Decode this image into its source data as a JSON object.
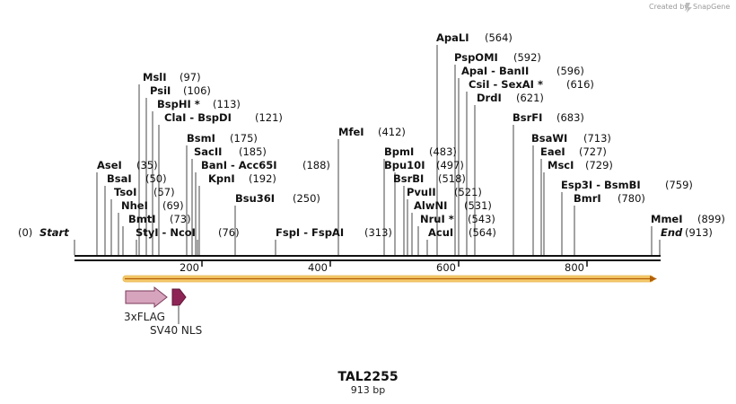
{
  "header": {
    "credit": "Created by",
    "brand": "SnapGene"
  },
  "map": {
    "name": "TAL2255",
    "length_label": "913 bp",
    "length": 913,
    "start": {
      "label": "Start",
      "pos": "(0)"
    },
    "end": {
      "label": "End",
      "pos": "(913)"
    },
    "ticks": [
      200,
      400,
      600,
      800
    ],
    "tick_labels": [
      "200",
      "400",
      "600",
      "800"
    ]
  },
  "sites": [
    {
      "name": "ApaLI",
      "pos": "(564)",
      "bp": 564
    },
    {
      "name": "PspOMI",
      "pos": "(592)",
      "bp": 592
    },
    {
      "name": "ApaI  - BanII",
      "pos": "(596)",
      "bp": 596
    },
    {
      "name": "CsiI  - SexAI *",
      "pos": "(616)",
      "bp": 616
    },
    {
      "name": "DrdI",
      "pos": "(621)",
      "bp": 621
    },
    {
      "name": "BsrFI",
      "pos": "(683)",
      "bp": 683
    },
    {
      "name": "BsaWI",
      "pos": "(713)",
      "bp": 713
    },
    {
      "name": "EaeI",
      "pos": "(727)",
      "bp": 727
    },
    {
      "name": "MscI",
      "pos": "(729)",
      "bp": 729
    },
    {
      "name": "Esp3I  - BsmBI",
      "pos": "(759)",
      "bp": 759
    },
    {
      "name": "BmrI",
      "pos": "(780)",
      "bp": 780
    },
    {
      "name": "MmeI",
      "pos": "(899)",
      "bp": 899
    },
    {
      "name": "MslI",
      "pos": "(97)",
      "bp": 97
    },
    {
      "name": "PsiI",
      "pos": "(106)",
      "bp": 106
    },
    {
      "name": "BspHI *",
      "pos": "(113)",
      "bp": 113
    },
    {
      "name": "ClaI  - BspDI",
      "pos": "(121)",
      "bp": 121
    },
    {
      "name": "BsmI",
      "pos": "(175)",
      "bp": 175
    },
    {
      "name": "SacII",
      "pos": "(185)",
      "bp": 185
    },
    {
      "name": "BanI  - Acc65I",
      "pos": "(188)",
      "bp": 188
    },
    {
      "name": "KpnI",
      "pos": "(192)",
      "bp": 192
    },
    {
      "name": "Bsu36I",
      "pos": "(250)",
      "bp": 250
    },
    {
      "name": "AseI",
      "pos": "(35)",
      "bp": 35
    },
    {
      "name": "BsaI",
      "pos": "(50)",
      "bp": 50
    },
    {
      "name": "TsoI",
      "pos": "(57)",
      "bp": 57
    },
    {
      "name": "NheI",
      "pos": "(69)",
      "bp": 69
    },
    {
      "name": "BmtI",
      "pos": "(73)",
      "bp": 73
    },
    {
      "name": "StyI  - NcoI",
      "pos": "(76)",
      "bp": 76
    },
    {
      "name": "MfeI",
      "pos": "(412)",
      "bp": 412
    },
    {
      "name": "FspI  - FspAI",
      "pos": "(313)",
      "bp": 313
    },
    {
      "name": "BpmI",
      "pos": "(483)",
      "bp": 483
    },
    {
      "name": "Bpu10I",
      "pos": "(497)",
      "bp": 497
    },
    {
      "name": "BsrBI",
      "pos": "(518)",
      "bp": 518
    },
    {
      "name": "PvuII",
      "pos": "(521)",
      "bp": 521
    },
    {
      "name": "AlwNI",
      "pos": "(531)",
      "bp": 531
    },
    {
      "name": "NruI *",
      "pos": "(543)",
      "bp": 543
    },
    {
      "name": "AcuI",
      "pos": "(564)",
      "bp": 564
    }
  ],
  "features": [
    {
      "name": "3xFLAG",
      "color": "#d7a4bd"
    },
    {
      "name": "SV40 NLS",
      "color": "#8e2456"
    }
  ],
  "colors": {
    "orf_fill": "#f5c96b",
    "orf_arrow": "#b45f06"
  }
}
